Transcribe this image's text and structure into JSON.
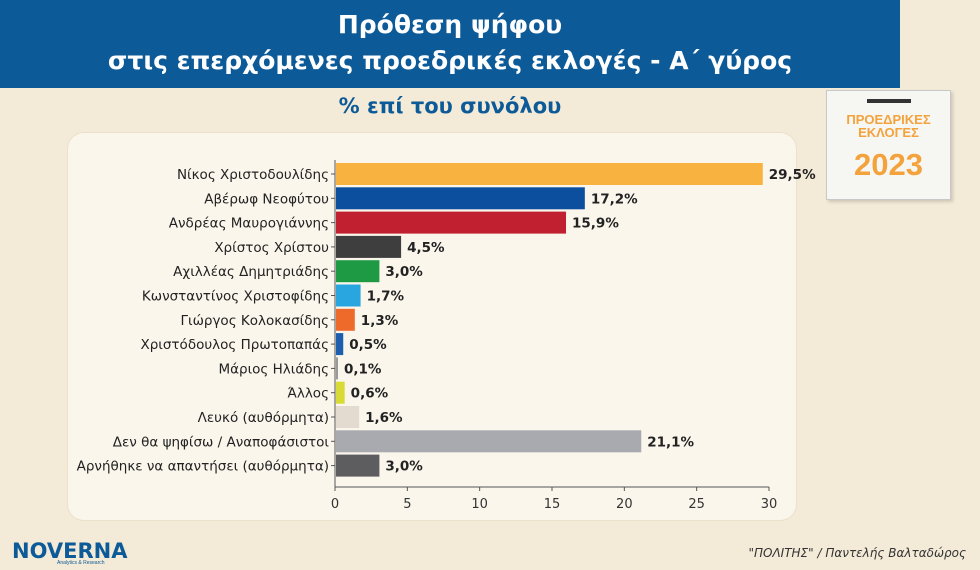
{
  "header": {
    "title_line1": "Πρόθεση ψήφου",
    "title_line2": "στις επερχόμενες προεδρικές εκλογές - Α΄ γύρος",
    "subtitle": "% επί του συνόλου"
  },
  "badge": {
    "line1": "ΠΡΟΕΔΡΙΚΕΣ",
    "line2": "ΕΚΛΟΓΕΣ",
    "year": "2023"
  },
  "footer": {
    "logo": "NOVERNA",
    "logo_tagline": "Analytics & Research",
    "credit": "\"ΠΟΛΙΤΗΣ\" / Παντελής Βαλταδώρος"
  },
  "chart_data": {
    "type": "bar",
    "orientation": "horizontal",
    "categories": [
      "Νίκος Χριστοδουλίδης",
      "Αβέρωφ Νεοφύτου",
      "Ανδρέας Μαυρογιάννης",
      "Χρίστος Χρίστου",
      "Αχιλλέας Δημητριάδης",
      "Κωνσταντίνος Χριστοφίδης",
      "Γιώργος Κολοκασίδης",
      "Χριστόδουλος Πρωτοπαπάς",
      "Μάριος Ηλιάδης",
      "Άλλος",
      "Λευκό (αυθόρμητα)",
      "Δεν θα ψηφίσω / Αναποφάσιστοι",
      "Αρνήθηκε να απαντήσει (αυθόρμητα)"
    ],
    "values": [
      29.5,
      17.2,
      15.9,
      4.5,
      3.0,
      1.7,
      1.3,
      0.5,
      0.1,
      0.6,
      1.6,
      21.1,
      3.0
    ],
    "value_labels": [
      "29,5%",
      "17,2%",
      "15,9%",
      "4,5%",
      "3,0%",
      "1,7%",
      "1,3%",
      "0,5%",
      "0,1%",
      "0,6%",
      "1,6%",
      "21,1%",
      "3,0%"
    ],
    "colors": [
      "#f8b23f",
      "#0c4f9e",
      "#c0202f",
      "#3e3e3e",
      "#1e9a45",
      "#29a6e0",
      "#ee6a2b",
      "#1d5fae",
      "#9a9a9a",
      "#d8db35",
      "#e3dbcf",
      "#a9a9b0",
      "#5d5d5f"
    ],
    "xlim": [
      0,
      30
    ],
    "xticks": [
      0,
      5,
      10,
      15,
      20,
      25,
      30
    ],
    "xtick_labels": [
      "0",
      "5",
      "10",
      "15",
      "20",
      "25",
      "30"
    ],
    "grid": false
  }
}
